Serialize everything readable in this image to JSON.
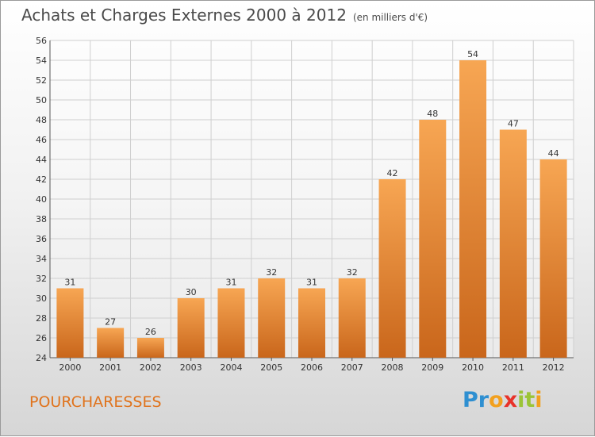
{
  "header": {
    "title": "Achats et Charges Externes 2000 à 2012",
    "unit": "(en milliers d'€)"
  },
  "footer": {
    "place": "POURCHARESSES",
    "logo_letters": [
      "P",
      "r",
      "o",
      "x",
      "i",
      "t",
      "i"
    ],
    "logo_colors": [
      "#2e8fd1",
      "#2e8fd1",
      "#f2a01e",
      "#e8332a",
      "#9bc436",
      "#9bc436",
      "#f2a01e"
    ]
  },
  "colors": {
    "bar_light": "#f7a653",
    "bar_dark": "#c9661b",
    "grid": "#cfcfcf",
    "title": "#4a4a4a",
    "place": "#e0731c"
  },
  "chart_data": {
    "type": "bar",
    "categories": [
      "2000",
      "2001",
      "2002",
      "2003",
      "2004",
      "2005",
      "2006",
      "2007",
      "2008",
      "2009",
      "2010",
      "2011",
      "2012"
    ],
    "values": [
      31,
      27,
      26,
      30,
      31,
      32,
      31,
      32,
      42,
      48,
      54,
      47,
      44
    ],
    "ylim": [
      24,
      56
    ],
    "yticks": [
      24,
      26,
      28,
      30,
      32,
      34,
      36,
      38,
      40,
      42,
      44,
      46,
      48,
      50,
      52,
      54,
      56
    ],
    "grid": true,
    "data_labels": true
  }
}
